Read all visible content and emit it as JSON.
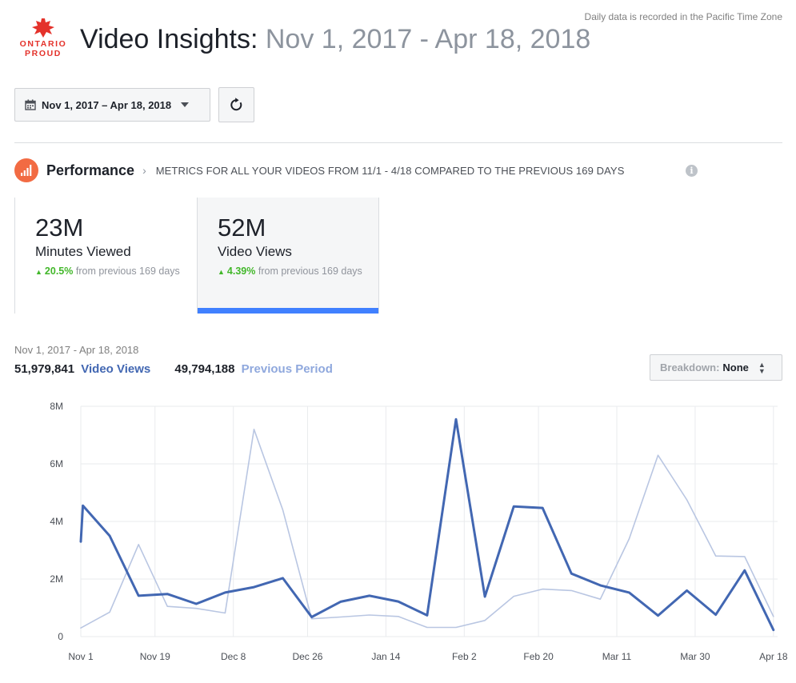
{
  "timezone_note": "Daily data is recorded in the Pacific Time Zone",
  "logo": {
    "line1": "ONTARIO",
    "line2": "PROUD",
    "color": "#e4322b"
  },
  "header": {
    "title": "Video Insights:",
    "range": "Nov 1, 2017 - Apr 18, 2018"
  },
  "date_picker": {
    "label": "Nov 1, 2017 – Apr 18, 2018"
  },
  "performance": {
    "title": "Performance",
    "subtitle": "METRICS FOR ALL YOUR VIDEOS FROM 11/1 - 4/18 COMPARED TO THE PREVIOUS 169 DAYS",
    "icon_color": "#f26b43"
  },
  "metrics": [
    {
      "value": "23M",
      "label": "Minutes Viewed",
      "change": "20.5%",
      "change_suffix": "from previous 169 days"
    },
    {
      "value": "52M",
      "label": "Video Views",
      "change": "4.39%",
      "change_suffix": "from previous 169 days",
      "selected": true
    }
  ],
  "summary": {
    "date_range": "Nov 1, 2017 - Apr 18, 2018",
    "current_total": "51,979,841",
    "current_label": "Video Views",
    "previous_total": "49,794,188",
    "previous_label": "Previous Period"
  },
  "breakdown": {
    "key": "Breakdown:",
    "value": "None"
  },
  "chart_data": {
    "type": "line",
    "ylim": [
      0,
      8000000
    ],
    "y_ticks": [
      0,
      2000000,
      4000000,
      6000000,
      8000000
    ],
    "y_tick_labels": [
      "0",
      "2M",
      "4M",
      "6M",
      "8M"
    ],
    "x_ticks": [
      0,
      18,
      36,
      54,
      72,
      90,
      108,
      126,
      144,
      162,
      180
    ],
    "x_tick_labels": [
      "Nov 1",
      "Nov 19",
      "Dec 8",
      "Dec 26",
      "Jan 14",
      "Feb 2",
      "Feb 20",
      "Mar 11",
      "Mar 30",
      "Apr 18"
    ],
    "x_tick_days": [
      0,
      18,
      37,
      55,
      74,
      93,
      111,
      130,
      149,
      168
    ],
    "x_max": 169,
    "grid": true,
    "series": [
      {
        "name": "Video Views",
        "color": "#4267b2",
        "x": [
          0,
          0.5,
          7,
          14,
          21,
          28,
          35,
          42,
          49,
          56,
          63,
          70,
          77,
          84,
          91,
          98,
          105,
          112,
          119,
          126,
          133,
          140,
          147,
          154,
          161,
          168
        ],
        "values": [
          3300000,
          4550000,
          3500000,
          1420000,
          1480000,
          1140000,
          1530000,
          1720000,
          2030000,
          680000,
          1210000,
          1420000,
          1220000,
          740000,
          7550000,
          1390000,
          4520000,
          4470000,
          2190000,
          1780000,
          1530000,
          730000,
          1600000,
          760000,
          2300000,
          230000
        ]
      },
      {
        "name": "Previous Period",
        "color": "#b9c6e2",
        "x": [
          0,
          7,
          14,
          21,
          28,
          35,
          42,
          49,
          56,
          63,
          70,
          77,
          84,
          91,
          98,
          105,
          112,
          119,
          126,
          133,
          140,
          147,
          154,
          161,
          168
        ],
        "values": [
          300000,
          850000,
          3200000,
          1050000,
          980000,
          820000,
          7200000,
          4400000,
          620000,
          680000,
          750000,
          700000,
          320000,
          320000,
          560000,
          1400000,
          1650000,
          1600000,
          1300000,
          3400000,
          6300000,
          4750000,
          2800000,
          2780000,
          700000
        ]
      }
    ]
  }
}
